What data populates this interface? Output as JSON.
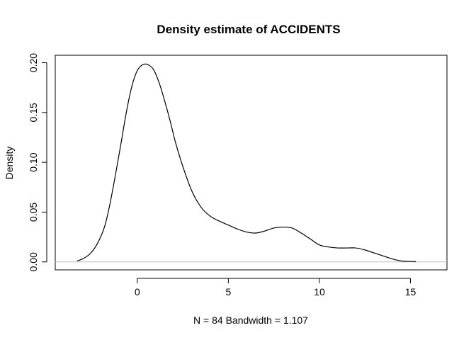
{
  "chart_data": {
    "type": "line",
    "title": "Density estimate of ACCIDENTS",
    "xlabel": "N = 84   Bandwidth = 1.107",
    "ylabel": "Density",
    "xlim": [
      -4.5,
      17.0
    ],
    "ylim": [
      -0.008,
      0.2075
    ],
    "x_ticks": [
      0,
      5,
      10,
      15
    ],
    "y_ticks": [
      0.0,
      0.05,
      0.1,
      0.15,
      0.2
    ],
    "x_tick_labels": [
      "0",
      "5",
      "10",
      "15"
    ],
    "y_tick_labels": [
      "0.00",
      "0.05",
      "0.10",
      "0.15",
      "0.20"
    ],
    "grid": false,
    "baseline": 0,
    "series": [
      {
        "color": "#000000",
        "x": [
          -3.3,
          -3.0,
          -2.6,
          -2.2,
          -1.8,
          -1.5,
          -1.2,
          -0.9,
          -0.6,
          -0.3,
          0.0,
          0.3,
          0.6,
          0.9,
          1.2,
          1.5,
          1.8,
          2.1,
          2.5,
          3.0,
          3.5,
          4.0,
          4.5,
          5.0,
          5.5,
          6.0,
          6.5,
          7.0,
          7.5,
          8.0,
          8.5,
          9.0,
          9.5,
          10.0,
          10.5,
          11.0,
          11.5,
          12.0,
          12.5,
          13.0,
          13.5,
          14.0,
          14.5,
          15.0,
          15.3
        ],
        "y": [
          0.001,
          0.003,
          0.008,
          0.018,
          0.035,
          0.058,
          0.087,
          0.118,
          0.15,
          0.176,
          0.192,
          0.198,
          0.198,
          0.193,
          0.18,
          0.162,
          0.142,
          0.12,
          0.096,
          0.071,
          0.055,
          0.046,
          0.041,
          0.037,
          0.033,
          0.03,
          0.029,
          0.031,
          0.034,
          0.035,
          0.034,
          0.029,
          0.023,
          0.017,
          0.015,
          0.014,
          0.014,
          0.014,
          0.012,
          0.009,
          0.006,
          0.003,
          0.001,
          0.0005,
          0.0003
        ]
      }
    ]
  }
}
